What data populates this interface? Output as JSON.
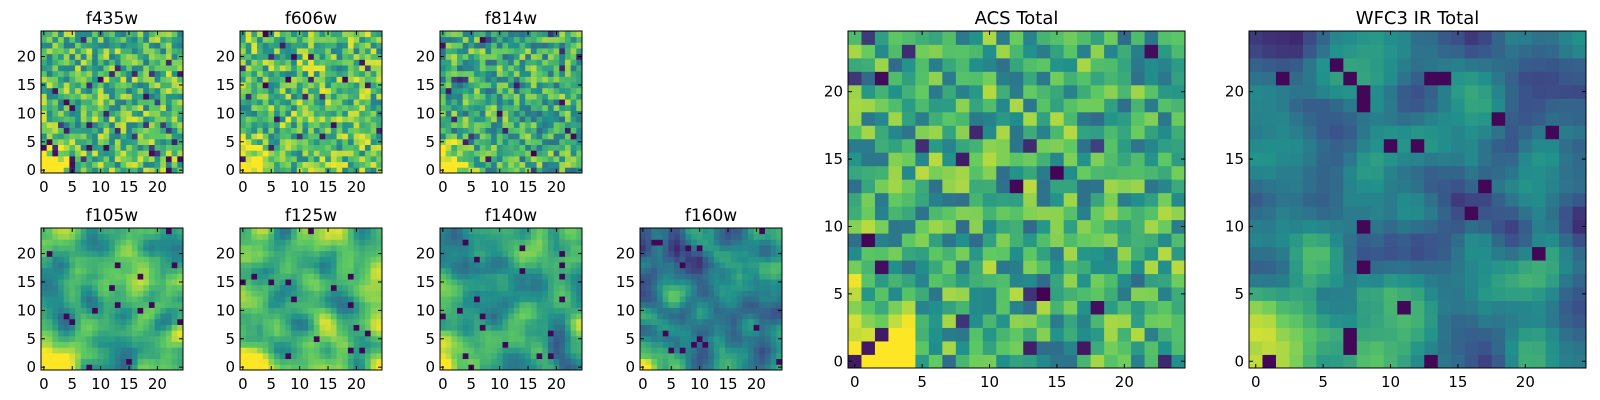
{
  "figure": {
    "cell_grid": 25,
    "colormap": "viridis",
    "colormap_stops": [
      "#440154",
      "#3b528b",
      "#21918c",
      "#5ec962",
      "#fde725"
    ]
  },
  "chart_data": [
    {
      "type": "heatmap",
      "title": "f435w",
      "xlim": [
        0,
        24
      ],
      "ylim": [
        0,
        24
      ],
      "xticks": [
        "0",
        "5",
        "10",
        "15",
        "20"
      ],
      "yticks": [
        "0",
        "5",
        "10",
        "15",
        "20"
      ],
      "texture": "noisy",
      "mean_level": 0.68,
      "bright_corner": "bottom-left"
    },
    {
      "type": "heatmap",
      "title": "f606w",
      "xlim": [
        0,
        24
      ],
      "ylim": [
        0,
        24
      ],
      "xticks": [
        "0",
        "5",
        "10",
        "15",
        "20"
      ],
      "yticks": [
        "0",
        "5",
        "10",
        "15",
        "20"
      ],
      "texture": "noisy",
      "mean_level": 0.7,
      "bright_corner": "bottom-left"
    },
    {
      "type": "heatmap",
      "title": "f814w",
      "xlim": [
        0,
        24
      ],
      "ylim": [
        0,
        24
      ],
      "xticks": [
        "0",
        "5",
        "10",
        "15",
        "20"
      ],
      "yticks": [
        "0",
        "5",
        "10",
        "15",
        "20"
      ],
      "texture": "noisy",
      "mean_level": 0.62,
      "bright_corner": "bottom-left"
    },
    {
      "type": "heatmap",
      "title": "f105w",
      "xlim": [
        0,
        24
      ],
      "ylim": [
        0,
        24
      ],
      "xticks": [
        "0",
        "5",
        "10",
        "15",
        "20"
      ],
      "yticks": [
        "0",
        "5",
        "10",
        "15",
        "20"
      ],
      "texture": "smooth",
      "mean_level": 0.62,
      "bright_corner": "bottom-left"
    },
    {
      "type": "heatmap",
      "title": "f125w",
      "xlim": [
        0,
        24
      ],
      "ylim": [
        0,
        24
      ],
      "xticks": [
        "0",
        "5",
        "10",
        "15",
        "20"
      ],
      "yticks": [
        "0",
        "5",
        "10",
        "15",
        "20"
      ],
      "texture": "smooth",
      "mean_level": 0.66,
      "bright_corner": "bottom-left"
    },
    {
      "type": "heatmap",
      "title": "f140w",
      "xlim": [
        0,
        24
      ],
      "ylim": [
        0,
        24
      ],
      "xticks": [
        "0",
        "5",
        "10",
        "15",
        "20"
      ],
      "yticks": [
        "0",
        "5",
        "10",
        "15",
        "20"
      ],
      "texture": "smooth",
      "mean_level": 0.55,
      "bright_corner": "bottom-left"
    },
    {
      "type": "heatmap",
      "title": "f160w",
      "xlim": [
        0,
        24
      ],
      "ylim": [
        0,
        24
      ],
      "xticks": [
        "0",
        "5",
        "10",
        "15",
        "20"
      ],
      "yticks": [
        "0",
        "5",
        "10",
        "15",
        "20"
      ],
      "texture": "smooth",
      "mean_level": 0.45,
      "bright_corner": "bottom-left"
    },
    {
      "type": "heatmap",
      "title": "ACS Total",
      "xlim": [
        0,
        24
      ],
      "ylim": [
        0,
        24
      ],
      "xticks": [
        "0",
        "5",
        "10",
        "15",
        "20"
      ],
      "yticks": [
        "0",
        "5",
        "10",
        "15",
        "20"
      ],
      "texture": "noisy",
      "mean_level": 0.62,
      "bright_corner": "bottom-left"
    },
    {
      "type": "heatmap",
      "title": "WFC3 IR Total",
      "xlim": [
        0,
        24
      ],
      "ylim": [
        0,
        24
      ],
      "xticks": [
        "0",
        "5",
        "10",
        "15",
        "20"
      ],
      "yticks": [
        "0",
        "5",
        "10",
        "15",
        "20"
      ],
      "texture": "smooth",
      "mean_level": 0.45,
      "bright_corner": "bottom-left"
    }
  ]
}
